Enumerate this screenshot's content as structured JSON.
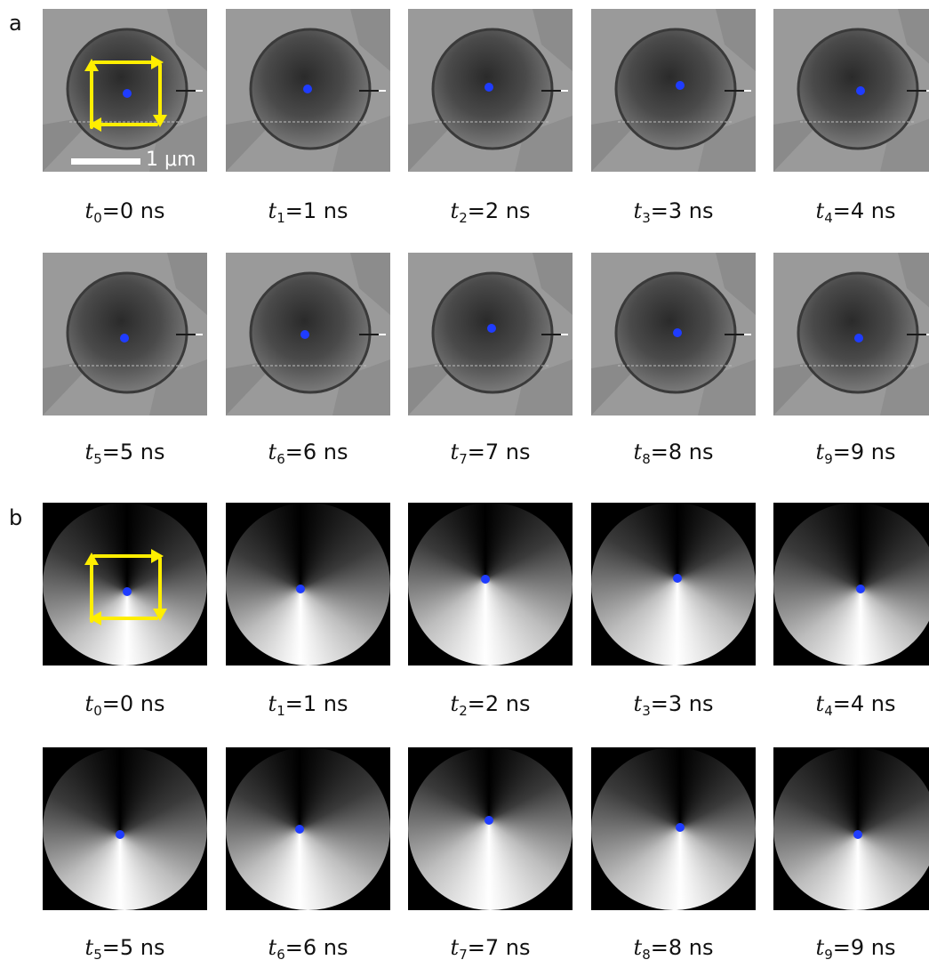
{
  "figure": {
    "panel_a": {
      "letter": "a",
      "scale_bar_label": "1 μm",
      "frames": [
        {
          "sym": "t",
          "sub": "0",
          "rest": "=0 ns"
        },
        {
          "sym": "t",
          "sub": "1",
          "rest": "=1 ns"
        },
        {
          "sym": "t",
          "sub": "2",
          "rest": "=2 ns"
        },
        {
          "sym": "t",
          "sub": "3",
          "rest": "=3 ns"
        },
        {
          "sym": "t",
          "sub": "4",
          "rest": "=4 ns"
        },
        {
          "sym": "t",
          "sub": "5",
          "rest": "=5 ns"
        },
        {
          "sym": "t",
          "sub": "6",
          "rest": "=6 ns"
        },
        {
          "sym": "t",
          "sub": "7",
          "rest": "=7 ns"
        },
        {
          "sym": "t",
          "sub": "8",
          "rest": "=8 ns"
        },
        {
          "sym": "t",
          "sub": "9",
          "rest": "=9 ns"
        }
      ]
    },
    "panel_b": {
      "letter": "b",
      "frames": [
        {
          "sym": "t",
          "sub": "0",
          "rest": "=0 ns"
        },
        {
          "sym": "t",
          "sub": "1",
          "rest": "=1 ns"
        },
        {
          "sym": "t",
          "sub": "2",
          "rest": "=2 ns"
        },
        {
          "sym": "t",
          "sub": "3",
          "rest": "=3 ns"
        },
        {
          "sym": "t",
          "sub": "4",
          "rest": "=4 ns"
        },
        {
          "sym": "t",
          "sub": "5",
          "rest": "=5 ns"
        },
        {
          "sym": "t",
          "sub": "6",
          "rest": "=6 ns"
        },
        {
          "sym": "t",
          "sub": "7",
          "rest": "=7 ns"
        },
        {
          "sym": "t",
          "sub": "8",
          "rest": "=8 ns"
        },
        {
          "sym": "t",
          "sub": "9",
          "rest": "=9 ns"
        }
      ]
    },
    "colors": {
      "core_marker": "#1f3cff",
      "gyration_arrows": "#ffee00",
      "background_b": "#000000"
    }
  }
}
